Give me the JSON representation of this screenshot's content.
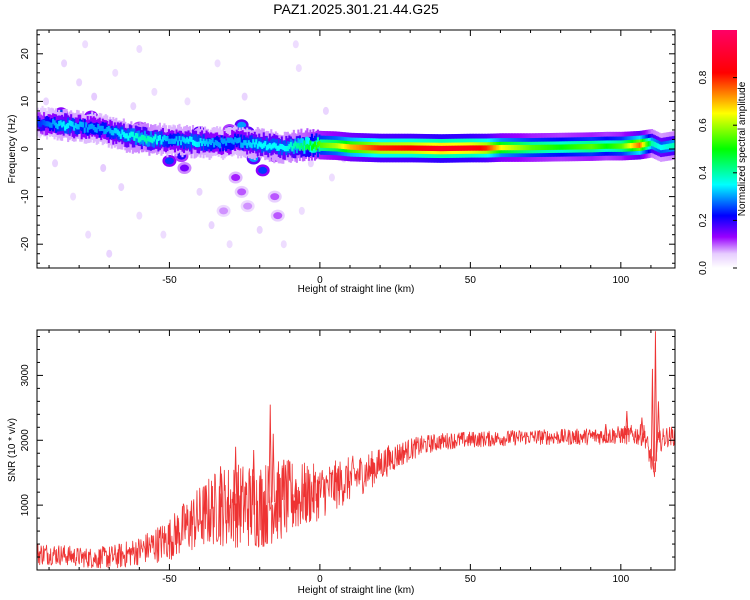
{
  "title": "PAZ1.2025.301.21.44.G25",
  "chart_data": [
    {
      "type": "heatmap",
      "title": "PAZ1.2025.301.21.44.G25",
      "xlabel": "Height of straight line (km)",
      "ylabel": "Frequency (Hz)",
      "xlim": [
        -94,
        118
      ],
      "ylim": [
        -25,
        25
      ],
      "x_ticks": [
        -50,
        0,
        50,
        100
      ],
      "x_tick_labels": [
        "-50",
        "0",
        "50",
        "100"
      ],
      "y_ticks": [
        -20,
        -10,
        0,
        10,
        20
      ],
      "y_tick_labels": [
        "-20",
        "-10",
        "0",
        "10",
        "20"
      ],
      "colorbar": {
        "label": "Normalized spectral amplitude",
        "range": [
          0,
          1
        ],
        "ticks": [
          0.0,
          0.2,
          0.4,
          0.6,
          0.8
        ],
        "tick_labels": [
          "0.0",
          "0.2",
          "0.4",
          "0.6",
          "0.8"
        ],
        "colormap": "rainbow (white-violet-blue-cyan-green-yellow-red-magenta)"
      },
      "main_line": {
        "description": "dominant ridge of spectral energy vs height",
        "points": [
          [
            -93,
            5.5,
            0.25
          ],
          [
            -85,
            5.0,
            0.35
          ],
          [
            -78,
            4.5,
            0.3
          ],
          [
            -72,
            4.0,
            0.3
          ],
          [
            -65,
            2.8,
            0.35
          ],
          [
            -58,
            2.2,
            0.4
          ],
          [
            -50,
            1.8,
            0.3
          ],
          [
            -42,
            1.5,
            0.35
          ],
          [
            -35,
            1.2,
            0.3
          ],
          [
            -28,
            1.5,
            0.3
          ],
          [
            -20,
            1.0,
            0.35
          ],
          [
            -12,
            0.3,
            0.35
          ],
          [
            -5,
            0.8,
            0.45
          ],
          [
            0,
            0.8,
            0.55
          ],
          [
            5,
            0.7,
            0.6
          ],
          [
            10,
            0.4,
            0.7
          ],
          [
            20,
            0.2,
            0.8
          ],
          [
            30,
            0.2,
            0.82
          ],
          [
            40,
            0.1,
            0.88
          ],
          [
            50,
            0.2,
            0.85
          ],
          [
            55,
            0.2,
            0.8
          ],
          [
            60,
            0.3,
            0.65
          ],
          [
            70,
            0.3,
            0.55
          ],
          [
            80,
            0.4,
            0.5
          ],
          [
            90,
            0.5,
            0.55
          ],
          [
            95,
            0.6,
            0.5
          ],
          [
            100,
            0.6,
            0.55
          ],
          [
            106,
            0.8,
            0.75
          ],
          [
            110,
            1.2,
            0.4
          ],
          [
            113,
            0.3,
            0.35
          ],
          [
            118,
            0.8,
            0.4
          ]
        ]
      },
      "blobs": [
        [
          -90,
          6.5,
          0.3
        ],
        [
          -86,
          7.5,
          0.25
        ],
        [
          -82,
          5.5,
          0.35
        ],
        [
          -76,
          6.8,
          0.25
        ],
        [
          -70,
          5.0,
          0.3
        ],
        [
          -66,
          3.5,
          0.3
        ],
        [
          -60,
          4.5,
          0.2
        ],
        [
          -55,
          0.5,
          0.25
        ],
        [
          -50,
          -2.5,
          0.25
        ],
        [
          -46,
          -1.5,
          0.2
        ],
        [
          -40,
          3.5,
          0.3
        ],
        [
          -38,
          1.0,
          0.25
        ],
        [
          -34,
          0.0,
          0.2
        ],
        [
          -30,
          4.0,
          0.2
        ],
        [
          -26,
          5.0,
          0.3
        ],
        [
          -24,
          3.5,
          0.3
        ],
        [
          -22,
          -2.0,
          0.3
        ],
        [
          -19,
          -4.5,
          0.25
        ],
        [
          -16,
          2.0,
          0.2
        ],
        [
          -15,
          -1.5,
          0.2
        ],
        [
          -10,
          -0.5,
          0.25
        ],
        [
          -28,
          -6.0,
          0.12
        ],
        [
          -26,
          -9.0,
          0.1
        ],
        [
          -24,
          -12.0,
          0.08
        ],
        [
          -32,
          -13.0,
          0.08
        ],
        [
          -15,
          -10.0,
          0.1
        ],
        [
          -14,
          -14.0,
          0.1
        ],
        [
          -45,
          -4.0,
          0.15
        ]
      ],
      "scatter_points": [
        [
          -80,
          14,
          0.05
        ],
        [
          -85,
          18,
          0.05
        ],
        [
          -78,
          22,
          0.04
        ],
        [
          -75,
          11,
          0.06
        ],
        [
          -68,
          16,
          0.04
        ],
        [
          -62,
          9,
          0.05
        ],
        [
          -55,
          12,
          0.04
        ],
        [
          -72,
          -4,
          0.06
        ],
        [
          -88,
          -3,
          0.05
        ],
        [
          -82,
          -10,
          0.04
        ],
        [
          -66,
          -8,
          0.05
        ],
        [
          -60,
          -14,
          0.04
        ],
        [
          -77,
          -18,
          0.04
        ],
        [
          -70,
          -22,
          0.05
        ],
        [
          -52,
          -18,
          0.04
        ],
        [
          -40,
          -9,
          0.05
        ],
        [
          -36,
          -16,
          0.05
        ],
        [
          -30,
          -20,
          0.04
        ],
        [
          -20,
          -17,
          0.05
        ],
        [
          -12,
          -20,
          0.04
        ],
        [
          -6,
          -13,
          0.04
        ],
        [
          -3,
          -3,
          0.05
        ],
        [
          2,
          8,
          0.05
        ],
        [
          4,
          -6,
          0.04
        ],
        [
          -8,
          22,
          0.04
        ],
        [
          -7,
          17,
          0.04
        ],
        [
          -44,
          10,
          0.04
        ],
        [
          -25,
          11,
          0.05
        ],
        [
          8,
          -2,
          0.05
        ],
        [
          -91,
          10,
          0.05
        ],
        [
          -60,
          21,
          0.04
        ],
        [
          -34,
          18,
          0.04
        ]
      ]
    },
    {
      "type": "line",
      "xlabel": "Height of straight line (km)",
      "ylabel": "SNR (10 * v/v)",
      "xlim": [
        -94,
        118
      ],
      "ylim": [
        0,
        3700
      ],
      "x_ticks": [
        -50,
        0,
        50,
        100
      ],
      "x_tick_labels": [
        "-50",
        "0",
        "50",
        "100"
      ],
      "y_ticks": [
        1000,
        2000,
        3000
      ],
      "y_tick_labels": [
        "1000",
        "2000",
        "3000"
      ],
      "color": "#ee3333",
      "envelope": [
        [
          -94,
          250
        ],
        [
          -90,
          250
        ],
        [
          -85,
          230
        ],
        [
          -80,
          200
        ],
        [
          -75,
          180
        ],
        [
          -70,
          190
        ],
        [
          -65,
          230
        ],
        [
          -60,
          300
        ],
        [
          -55,
          380
        ],
        [
          -50,
          480
        ],
        [
          -45,
          650
        ],
        [
          -40,
          800
        ],
        [
          -35,
          950
        ],
        [
          -30,
          1000
        ],
        [
          -25,
          1000
        ],
        [
          -20,
          1000
        ],
        [
          -15,
          1050
        ],
        [
          -10,
          1100
        ],
        [
          -5,
          1150
        ],
        [
          0,
          1200
        ],
        [
          5,
          1300
        ],
        [
          10,
          1400
        ],
        [
          15,
          1500
        ],
        [
          20,
          1620
        ],
        [
          25,
          1750
        ],
        [
          30,
          1860
        ],
        [
          35,
          1930
        ],
        [
          40,
          1980
        ],
        [
          45,
          2000
        ],
        [
          50,
          2010
        ],
        [
          55,
          2020
        ],
        [
          60,
          2030
        ],
        [
          65,
          2040
        ],
        [
          70,
          2050
        ],
        [
          75,
          2050
        ],
        [
          80,
          2050
        ],
        [
          85,
          2050
        ],
        [
          90,
          2060
        ],
        [
          95,
          2070
        ],
        [
          100,
          2080
        ],
        [
          105,
          2080
        ],
        [
          108,
          2080
        ],
        [
          110,
          1700
        ],
        [
          111,
          1400
        ],
        [
          112,
          1950
        ],
        [
          115,
          2050
        ],
        [
          118,
          2070
        ]
      ],
      "noise_envelope": [
        [
          -94,
          180
        ],
        [
          -80,
          150
        ],
        [
          -60,
          220
        ],
        [
          -50,
          330
        ],
        [
          -40,
          500
        ],
        [
          -30,
          650
        ],
        [
          -20,
          680
        ],
        [
          -10,
          600
        ],
        [
          0,
          420
        ],
        [
          10,
          350
        ],
        [
          20,
          260
        ],
        [
          30,
          170
        ],
        [
          40,
          130
        ],
        [
          60,
          120
        ],
        [
          80,
          120
        ],
        [
          100,
          140
        ],
        [
          110,
          180
        ],
        [
          118,
          150
        ]
      ],
      "spikes": [
        [
          -16.5,
          2550
        ],
        [
          -15.5,
          2100
        ],
        [
          -22,
          1850
        ],
        [
          -28,
          1900
        ],
        [
          -33,
          1600
        ],
        [
          -38,
          1250
        ],
        [
          -12,
          1700
        ],
        [
          -8,
          1400
        ],
        [
          -5,
          1350
        ],
        [
          95,
          2250
        ],
        [
          102,
          2450
        ],
        [
          107,
          2350
        ],
        [
          111.5,
          3680
        ],
        [
          110.5,
          3100
        ],
        [
          112.5,
          2600
        ]
      ]
    }
  ]
}
